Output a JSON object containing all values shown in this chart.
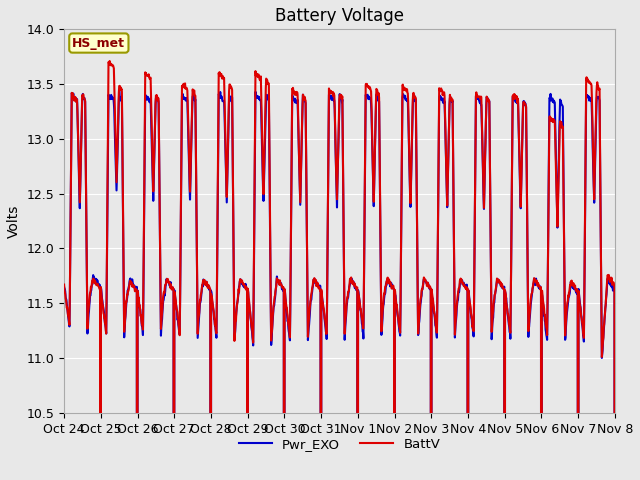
{
  "title": "Battery Voltage",
  "ylabel": "Volts",
  "ylim": [
    10.5,
    14.0
  ],
  "yticks": [
    10.5,
    11.0,
    11.5,
    12.0,
    12.5,
    13.0,
    13.5,
    14.0
  ],
  "xlabel_ticks": [
    "Oct 24",
    "Oct 25",
    "Oct 26",
    "Oct 27",
    "Oct 28",
    "Oct 29",
    "Oct 30",
    "Oct 31",
    "Nov 1",
    "Nov 2",
    "Nov 3",
    "Nov 4",
    "Nov 5",
    "Nov 6",
    "Nov 7",
    "Nov 8"
  ],
  "battv_color": "#dd0000",
  "pwr_exo_color": "#0000cc",
  "background_color": "#e8e8e8",
  "plot_bg_color": "#e8e8e8",
  "legend_battv": "BattV",
  "legend_pwr": "Pwr_EXO",
  "annotation_text": "HS_met",
  "annotation_bg": "#ffffcc",
  "annotation_border": "#999900",
  "title_fontsize": 12,
  "label_fontsize": 10,
  "tick_fontsize": 9,
  "line_width": 1.5,
  "grid_color": "#ffffff",
  "n_days": 15,
  "pts_per_day": 96
}
